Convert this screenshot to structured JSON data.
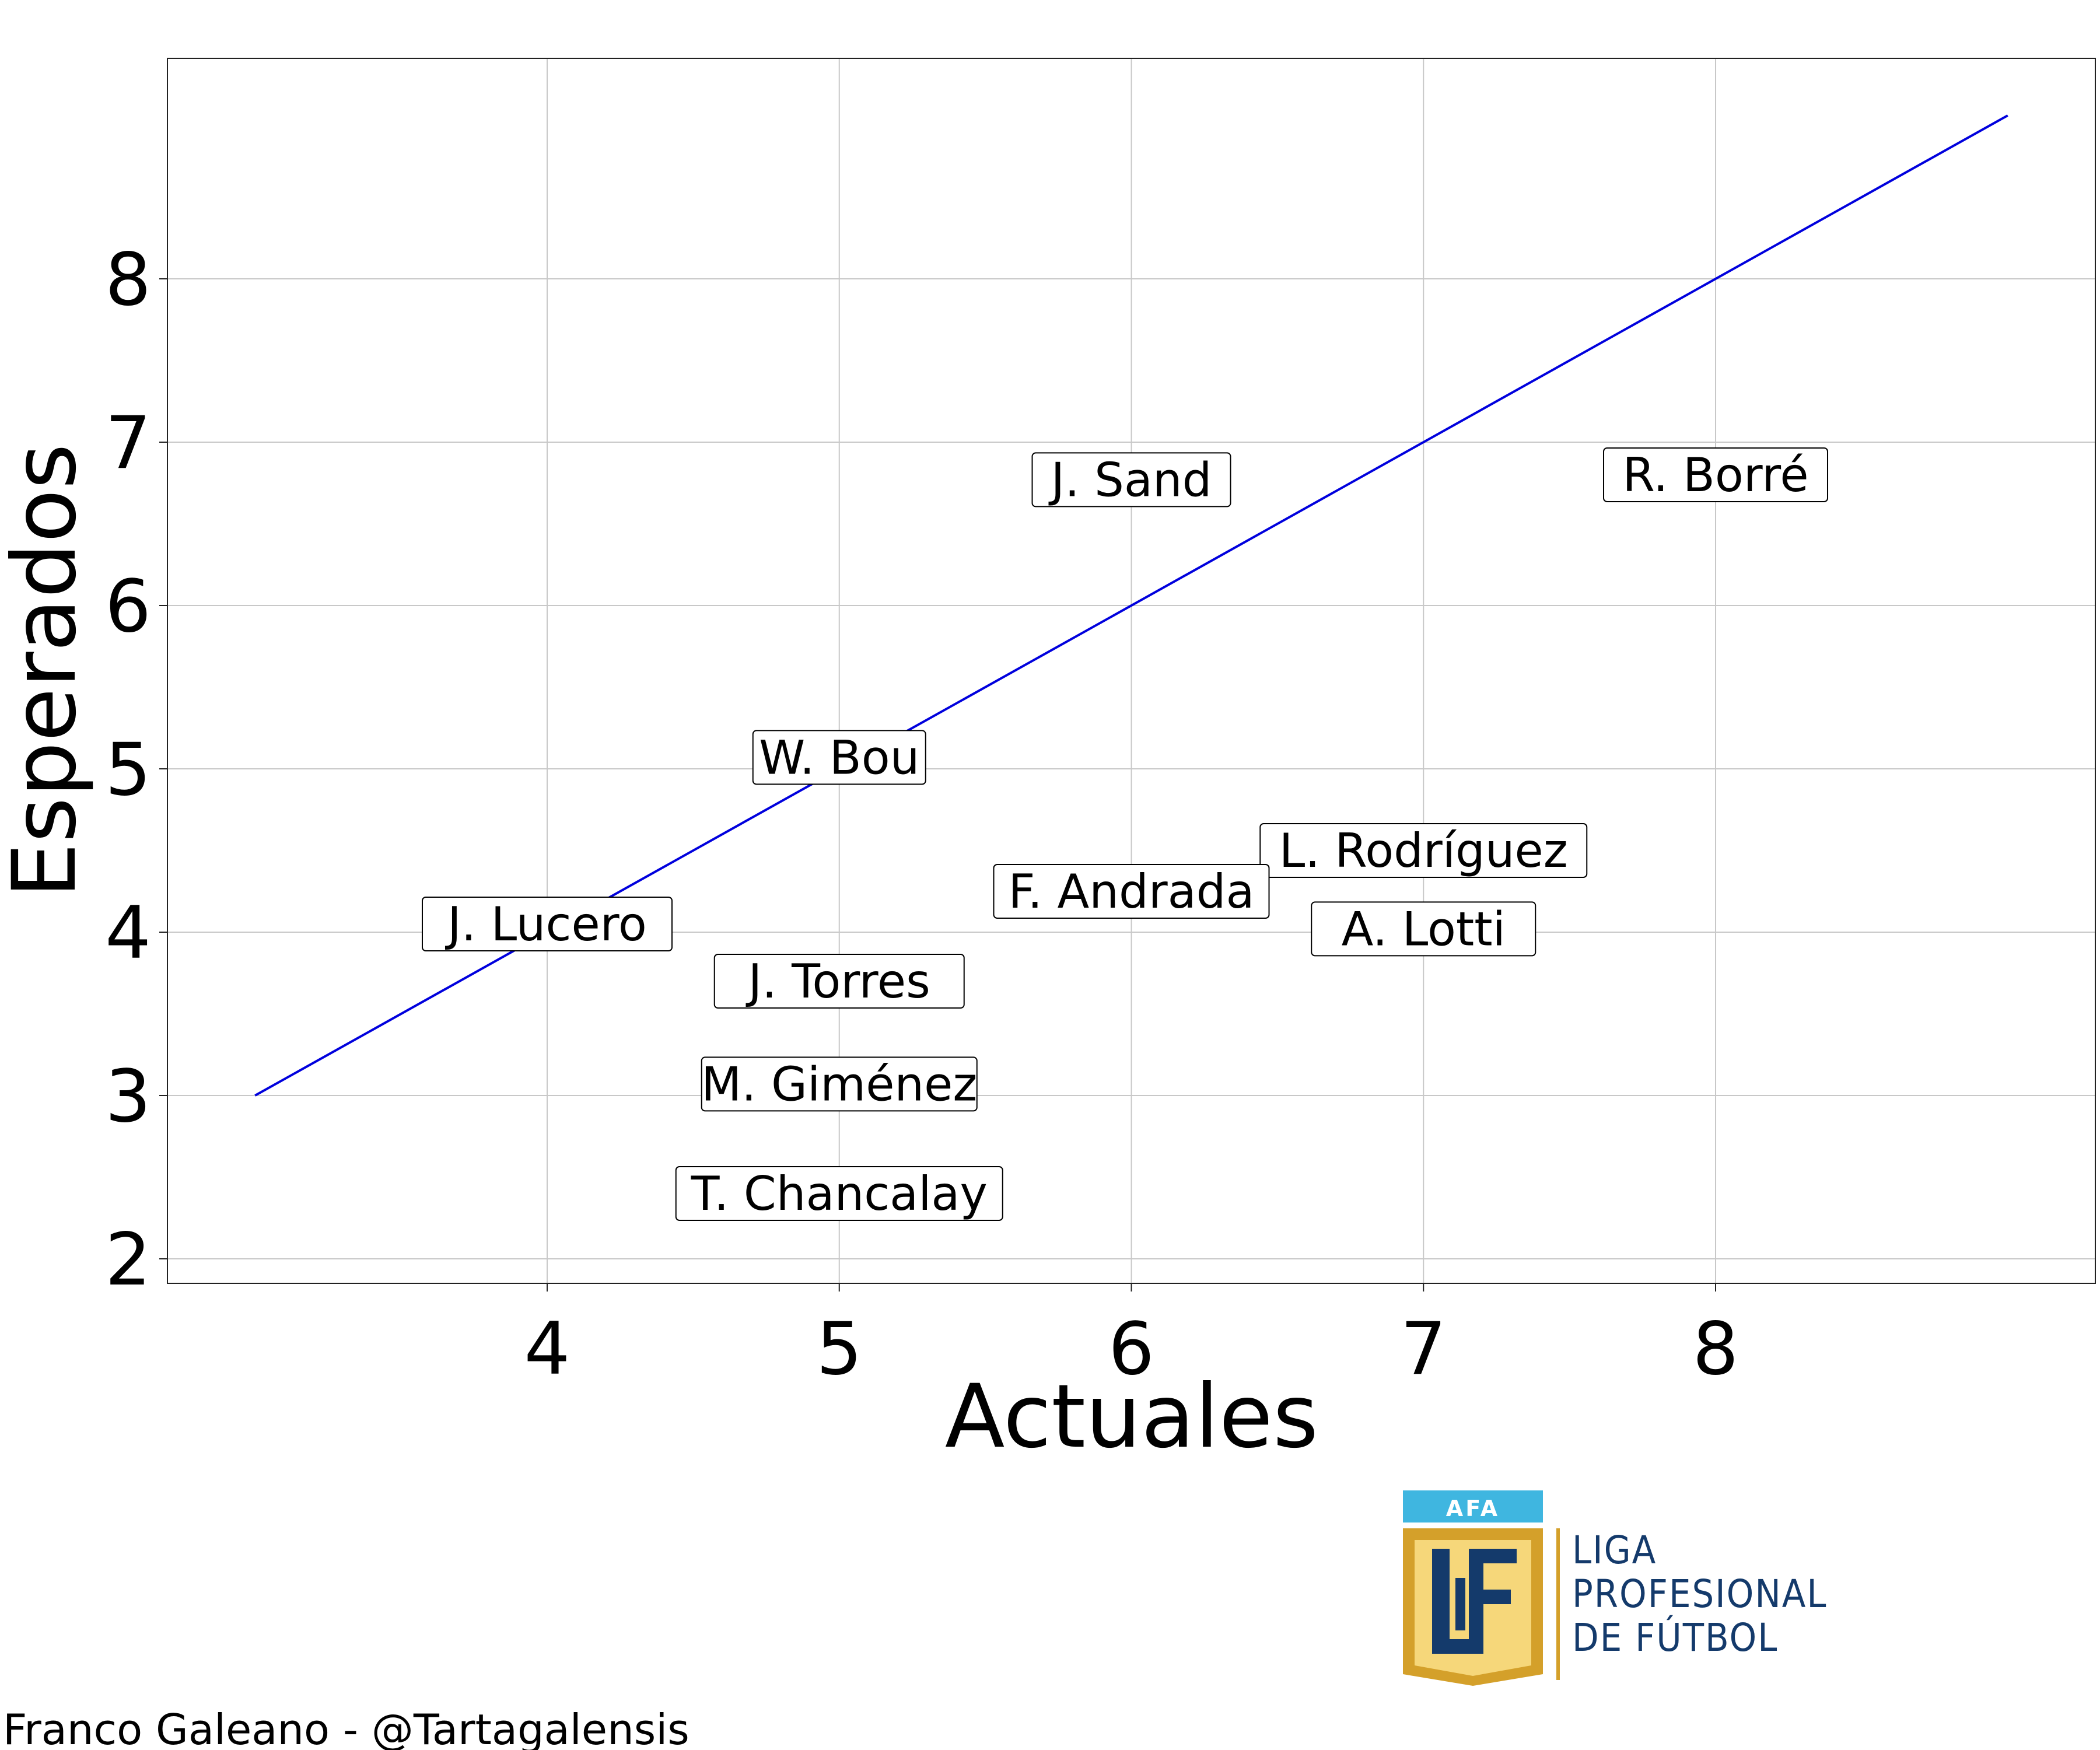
{
  "chart_data": {
    "type": "scatter",
    "xlabel": "Actuales",
    "ylabel": "Esperados",
    "xlim": [
      2.7,
      9.3
    ],
    "ylim": [
      1.85,
      9.35
    ],
    "x_ticks": [
      4,
      5,
      6,
      7,
      8
    ],
    "y_ticks": [
      2,
      3,
      4,
      5,
      6,
      7,
      8
    ],
    "grid": true,
    "reference_line": {
      "from": [
        3,
        3
      ],
      "to": [
        9,
        9
      ],
      "color": "#0000dd"
    },
    "points": [
      {
        "label": "J. Sand",
        "x": 6,
        "y": 6.52
      },
      {
        "label": "R. Borré",
        "x": 8,
        "y": 6.55
      },
      {
        "label": "W. Bou",
        "x": 5,
        "y": 4.82
      },
      {
        "label": "L. Rodríguez",
        "x": 7,
        "y": 4.25
      },
      {
        "label": "F. Andrada",
        "x": 6,
        "y": 4.0
      },
      {
        "label": "A. Lotti",
        "x": 7,
        "y": 3.77
      },
      {
        "label": "J. Lucero",
        "x": 4,
        "y": 3.8
      },
      {
        "label": "J. Torres",
        "x": 5,
        "y": 3.45
      },
      {
        "label": "M. Giménez",
        "x": 5,
        "y": 2.82
      },
      {
        "label": "T. Chancalay",
        "x": 5,
        "y": 2.15
      }
    ]
  },
  "credit": "Franco Galeano - @Tartagalensis",
  "logo": {
    "badge_text": "AFA",
    "monogram": "LPF",
    "lines": [
      "LIGA",
      "PROFESIONAL",
      "DE FÚTBOL"
    ],
    "colors": {
      "sky": "#3fb6e0",
      "gold": "#d4a02a",
      "navy": "#143a6b",
      "shield": "#f6d77a"
    }
  }
}
